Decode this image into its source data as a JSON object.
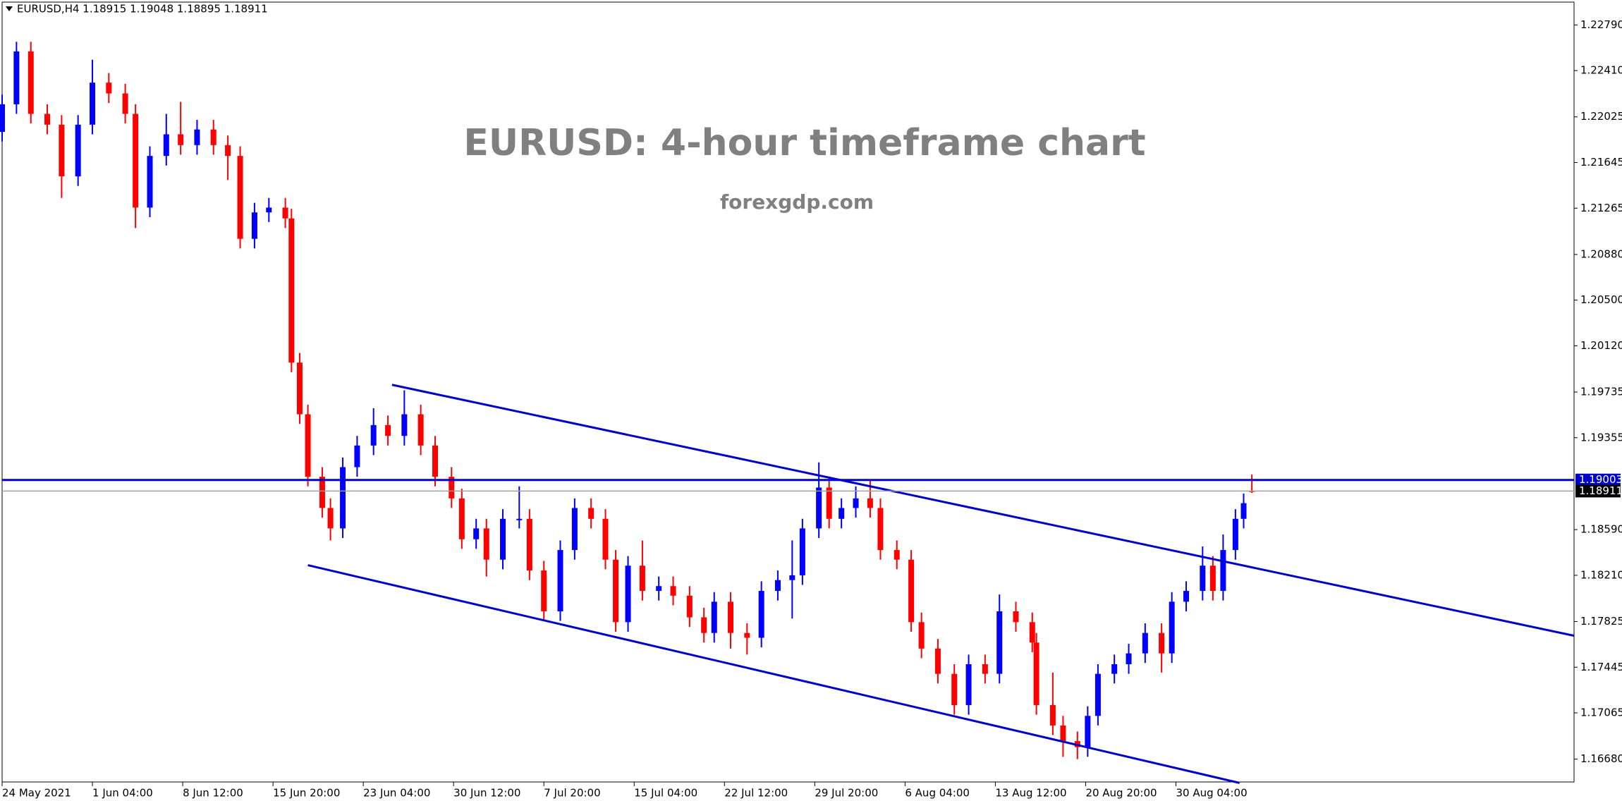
{
  "chart_data": {
    "type": "candlestick",
    "header": "EURUSD,H4  1.18915 1.19048 1.18895 1.18911",
    "title": "EURUSD: 4-hour timeframe chart",
    "subtitle": "forexgdp.com",
    "up_color": "#0000ff",
    "down_color": "#ff0000",
    "line_color": "#0000cd",
    "xlim": [
      0,
      766
    ],
    "xticks": [
      {
        "value": 0,
        "label": "24 May 2021"
      },
      {
        "value": 44,
        "label": "1 Jun 04:00"
      },
      {
        "value": 88,
        "label": "8 Jun 12:00"
      },
      {
        "value": 132,
        "label": "15 Jun 20:00"
      },
      {
        "value": 176,
        "label": "23 Jun 04:00"
      },
      {
        "value": 220,
        "label": "30 Jun 12:00"
      },
      {
        "value": 264,
        "label": "7 Jul 20:00"
      },
      {
        "value": 308,
        "label": "15 Jul 04:00"
      },
      {
        "value": 352,
        "label": "22 Jul 12:00"
      },
      {
        "value": 396,
        "label": "29 Jul 20:00"
      },
      {
        "value": 440,
        "label": "6 Aug 04:00"
      },
      {
        "value": 484,
        "label": "13 Aug 12:00"
      },
      {
        "value": 528,
        "label": "20 Aug 20:00"
      },
      {
        "value": 572,
        "label": "30 Aug 04:00"
      }
    ],
    "ylim": [
      1.1649,
      1.2298
    ],
    "yticks": [
      {
        "value": 1.2279,
        "label": "1.22790"
      },
      {
        "value": 1.2241,
        "label": "1.22410"
      },
      {
        "value": 1.22025,
        "label": "1.22025"
      },
      {
        "value": 1.21645,
        "label": "1.21645"
      },
      {
        "value": 1.21265,
        "label": "1.21265"
      },
      {
        "value": 1.2088,
        "label": "1.20880"
      },
      {
        "value": 1.205,
        "label": "1.20500"
      },
      {
        "value": 1.2012,
        "label": "1.20120"
      },
      {
        "value": 1.19735,
        "label": "1.19735"
      },
      {
        "value": 1.19355,
        "label": "1.19355"
      },
      {
        "value": 1.1859,
        "label": "1.18590"
      },
      {
        "value": 1.1821,
        "label": "1.18210"
      },
      {
        "value": 1.17825,
        "label": "1.17825"
      },
      {
        "value": 1.17445,
        "label": "1.17445"
      },
      {
        "value": 1.17065,
        "label": "1.17065"
      },
      {
        "value": 1.1668,
        "label": "1.16680"
      }
    ],
    "hlines": [
      {
        "value": 1.19003,
        "label": "1.19003",
        "color": "#0000cd"
      },
      {
        "value": 1.18911,
        "label": "1.18911",
        "color": "#a0a0a0"
      }
    ],
    "trendlines": [
      {
        "x": [
          190,
          766
        ],
        "y": [
          1.19795,
          1.17707
        ]
      },
      {
        "x": [
          149,
          603
        ],
        "y": [
          1.18294,
          1.16482
        ]
      }
    ],
    "candles": {
      "x": [
        0,
        7,
        14,
        22,
        29,
        37,
        44,
        52,
        60,
        65,
        72,
        80,
        87,
        95,
        103,
        110,
        116,
        123,
        130,
        138,
        141,
        145,
        149,
        156,
        160,
        166,
        173,
        181,
        188,
        196,
        204,
        211,
        219,
        224,
        231,
        236,
        244,
        252,
        257,
        264,
        272,
        279,
        287,
        294,
        299,
        305,
        312,
        320,
        327,
        335,
        342,
        347,
        355,
        363,
        370,
        378,
        385,
        390,
        398,
        403,
        409,
        416,
        423,
        428,
        436,
        443,
        448,
        456,
        464,
        471,
        479,
        486,
        494,
        502,
        504,
        512,
        517,
        524,
        529,
        534,
        542,
        549,
        557,
        565,
        570,
        577,
        585,
        590,
        595,
        601,
        605,
        609
      ],
      "open": [
        1.219,
        1.2213,
        1.2257,
        1.2205,
        1.2196,
        1.2153,
        1.2196,
        1.2231,
        1.2222,
        1.2205,
        1.2127,
        1.217,
        1.2188,
        1.2179,
        1.2192,
        1.2179,
        1.217,
        1.2101,
        1.2123,
        1.2127,
        1.2118,
        1.1998,
        1.1955,
        1.1903,
        1.1877,
        1.186,
        1.1911,
        1.1929,
        1.1946,
        1.1937,
        1.1955,
        1.1929,
        1.1903,
        1.1885,
        1.1851,
        1.186,
        1.1834,
        1.1868,
        1.1868,
        1.1825,
        1.1791,
        1.1842,
        1.1877,
        1.1868,
        1.1834,
        1.1782,
        1.1829,
        1.1808,
        1.1812,
        1.1804,
        1.1786,
        1.1773,
        1.1799,
        1.1773,
        1.1769,
        1.1808,
        1.1817,
        1.1821,
        1.186,
        1.1894,
        1.1868,
        1.1877,
        1.1885,
        1.1877,
        1.1842,
        1.1834,
        1.1782,
        1.176,
        1.1739,
        1.1713,
        1.1747,
        1.1739,
        1.1791,
        1.1782,
        1.1765,
        1.1713,
        1.1696,
        1.1683,
        1.1678,
        1.1704,
        1.1739,
        1.1747,
        1.1756,
        1.1773,
        1.1756,
        1.1799,
        1.1808,
        1.1829,
        1.1808,
        1.1842,
        1.1868,
        1.18915
      ],
      "high": [
        1.2221,
        1.2265,
        1.2265,
        1.2213,
        1.2204,
        1.2204,
        1.225,
        1.2239,
        1.223,
        1.2213,
        1.2178,
        1.2205,
        1.2215,
        1.22,
        1.22,
        1.2187,
        1.2178,
        1.2131,
        1.2135,
        1.2135,
        1.2126,
        1.2006,
        1.1963,
        1.1911,
        1.1885,
        1.1919,
        1.1937,
        1.196,
        1.1954,
        1.1975,
        1.1963,
        1.1937,
        1.1911,
        1.1893,
        1.1868,
        1.1868,
        1.1876,
        1.1895,
        1.1876,
        1.1833,
        1.185,
        1.1885,
        1.1885,
        1.1876,
        1.1842,
        1.1837,
        1.185,
        1.182,
        1.182,
        1.1812,
        1.1794,
        1.1807,
        1.1807,
        1.1781,
        1.1816,
        1.1825,
        1.185,
        1.1868,
        1.1915,
        1.1902,
        1.1885,
        1.1895,
        1.19,
        1.1885,
        1.185,
        1.1842,
        1.179,
        1.1768,
        1.1747,
        1.1755,
        1.1755,
        1.1805,
        1.1799,
        1.179,
        1.1773,
        1.174,
        1.1704,
        1.1691,
        1.1712,
        1.1747,
        1.1755,
        1.1764,
        1.1781,
        1.1781,
        1.1807,
        1.1816,
        1.1845,
        1.1837,
        1.1855,
        1.1876,
        1.1889,
        1.19048
      ],
      "low": [
        1.2182,
        1.2205,
        1.2197,
        1.2188,
        1.2135,
        1.2145,
        1.2188,
        1.2214,
        1.2197,
        1.211,
        1.2119,
        1.2162,
        1.2171,
        1.2171,
        1.2171,
        1.215,
        1.2093,
        1.2093,
        1.2115,
        1.211,
        1.199,
        1.1947,
        1.1895,
        1.1869,
        1.185,
        1.1852,
        1.1903,
        1.1921,
        1.1929,
        1.1929,
        1.1921,
        1.1895,
        1.1877,
        1.1843,
        1.1843,
        1.182,
        1.1826,
        1.186,
        1.1817,
        1.1783,
        1.1783,
        1.1834,
        1.186,
        1.1826,
        1.1774,
        1.1774,
        1.18,
        1.18,
        1.1796,
        1.1778,
        1.1765,
        1.1765,
        1.176,
        1.1755,
        1.1761,
        1.18,
        1.1785,
        1.1813,
        1.1852,
        1.186,
        1.186,
        1.1869,
        1.1869,
        1.1834,
        1.1826,
        1.1774,
        1.1752,
        1.1731,
        1.1705,
        1.1705,
        1.1731,
        1.1731,
        1.1774,
        1.1757,
        1.1705,
        1.1688,
        1.167,
        1.1668,
        1.167,
        1.1696,
        1.1731,
        1.1739,
        1.1748,
        1.174,
        1.1748,
        1.1791,
        1.18,
        1.18,
        1.18,
        1.1834,
        1.186,
        1.18895
      ],
      "close": [
        1.2213,
        1.2257,
        1.2205,
        1.2196,
        1.2153,
        1.2196,
        1.2231,
        1.2222,
        1.2205,
        1.2127,
        1.217,
        1.2188,
        1.2179,
        1.2192,
        1.2179,
        1.217,
        1.2101,
        1.2123,
        1.2127,
        1.2118,
        1.1998,
        1.1955,
        1.1903,
        1.1877,
        1.186,
        1.1911,
        1.1929,
        1.1946,
        1.1937,
        1.1955,
        1.1929,
        1.1903,
        1.1885,
        1.1851,
        1.186,
        1.1834,
        1.1868,
        1.1868,
        1.1825,
        1.1791,
        1.1842,
        1.1877,
        1.1868,
        1.1834,
        1.1782,
        1.1829,
        1.1808,
        1.1812,
        1.1804,
        1.1786,
        1.1773,
        1.1799,
        1.1773,
        1.1769,
        1.1808,
        1.1817,
        1.1821,
        1.186,
        1.1894,
        1.1868,
        1.1877,
        1.1885,
        1.1877,
        1.1842,
        1.1834,
        1.1782,
        1.176,
        1.1739,
        1.1713,
        1.1747,
        1.1739,
        1.1791,
        1.1782,
        1.1765,
        1.1713,
        1.1696,
        1.1683,
        1.1678,
        1.1704,
        1.1739,
        1.1747,
        1.1756,
        1.1773,
        1.1756,
        1.1799,
        1.1808,
        1.1829,
        1.1808,
        1.1842,
        1.1868,
        1.1881,
        1.18911
      ]
    }
  }
}
